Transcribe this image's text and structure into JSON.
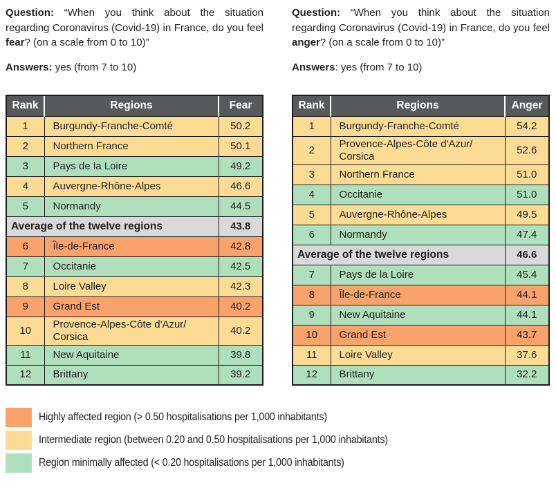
{
  "colors": {
    "orange": "#FAA26C",
    "yellow": "#FCDC95",
    "green": "#AFDFBC",
    "average_bg": "#D9D9D9",
    "header_bg": "#58595B",
    "header_text": "#FFFFFF",
    "border": "#1A1A1A",
    "text": "#212121"
  },
  "panels": [
    {
      "id": "fear",
      "question": {
        "label": "Question:",
        "text_before": " “When you think about the situation regarding Coronavirus (Covid-19) in France, do you feel ",
        "emotion": "fear",
        "text_after": "? (on a scale from 0 to 10)”"
      },
      "answers": {
        "label": "Answers:",
        "text": " yes (from 7 to 10)"
      },
      "table": {
        "columns": [
          "Rank",
          "Regions",
          "Fear"
        ],
        "rows": [
          {
            "type": "region",
            "rank": "1",
            "region": "Burgundy-Franche-Comté",
            "value": "50.2",
            "color": "yellow"
          },
          {
            "type": "region",
            "rank": "2",
            "region": "Northern France",
            "value": "50.1",
            "color": "yellow"
          },
          {
            "type": "region",
            "rank": "3",
            "region": "Pays de la Loire",
            "value": "49.2",
            "color": "green"
          },
          {
            "type": "region",
            "rank": "4",
            "region": "Auvergne-Rhône-Alpes",
            "value": "46.6",
            "color": "yellow"
          },
          {
            "type": "region",
            "rank": "5",
            "region": "Normandy",
            "value": "44.5",
            "color": "green"
          },
          {
            "type": "average",
            "label": "Average of the twelve regions",
            "value": "43.8"
          },
          {
            "type": "region",
            "rank": "6",
            "region": "Île-de-France",
            "value": "42.8",
            "color": "orange"
          },
          {
            "type": "region",
            "rank": "7",
            "region": "Occitanie",
            "value": "42.5",
            "color": "green"
          },
          {
            "type": "region",
            "rank": "8",
            "region": "Loire Valley",
            "value": "42.3",
            "color": "yellow"
          },
          {
            "type": "region",
            "rank": "9",
            "region": "Grand Est",
            "value": "40.2",
            "color": "orange"
          },
          {
            "type": "region",
            "rank": "10",
            "region": "Provence-Alpes-Côte d'Azur/ Corsica",
            "value": "40.2",
            "color": "yellow"
          },
          {
            "type": "region",
            "rank": "11",
            "region": "New Aquitaine",
            "value": "39.8",
            "color": "green"
          },
          {
            "type": "region",
            "rank": "12",
            "region": "Brittany",
            "value": "39.2",
            "color": "green"
          }
        ]
      }
    },
    {
      "id": "anger",
      "question": {
        "label": "Question:",
        "text_before": " “When you think about the situation regarding Coronavirus (Covid-19) in France, do you feel ",
        "emotion": "anger",
        "text_after": "? (on a scale from 0 to 10)”"
      },
      "answers": {
        "label": "Answers",
        "text": ": yes (from 7 to 10)"
      },
      "table": {
        "columns": [
          "Rank",
          "Regions",
          "Anger"
        ],
        "rows": [
          {
            "type": "region",
            "rank": "1",
            "region": "Burgundy-Franche-Comté",
            "value": "54.2",
            "color": "yellow"
          },
          {
            "type": "region",
            "rank": "2",
            "region": "Provence-Alpes-Côte d'Azur/ Corsica",
            "value": "52.6",
            "color": "yellow"
          },
          {
            "type": "region",
            "rank": "3",
            "region": "Northern France",
            "value": "51.0",
            "color": "yellow"
          },
          {
            "type": "region",
            "rank": "4",
            "region": "Occitanie",
            "value": "51.0",
            "color": "green"
          },
          {
            "type": "region",
            "rank": "5",
            "region": "Auvergne-Rhône-Alpes",
            "value": "49.5",
            "color": "yellow"
          },
          {
            "type": "region",
            "rank": "6",
            "region": "Normandy",
            "value": "47.4",
            "color": "green"
          },
          {
            "type": "average",
            "label": "Average of the twelve regions",
            "value": "46.6"
          },
          {
            "type": "region",
            "rank": "7",
            "region": "Pays de la Loire",
            "value": "45.4",
            "color": "green"
          },
          {
            "type": "region",
            "rank": "8",
            "region": "Île-de-France",
            "value": "44.1",
            "color": "orange"
          },
          {
            "type": "region",
            "rank": "9",
            "region": "New Aquitaine",
            "value": "44.1",
            "color": "green"
          },
          {
            "type": "region",
            "rank": "10",
            "region": "Grand Est",
            "value": "43.7",
            "color": "orange"
          },
          {
            "type": "region",
            "rank": "11",
            "region": "Loire Valley",
            "value": "37.6",
            "color": "yellow"
          },
          {
            "type": "region",
            "rank": "12",
            "region": "Brittany",
            "value": "32.2",
            "color": "green"
          }
        ]
      }
    }
  ],
  "legend": [
    {
      "color": "orange",
      "text": "Highly affected region (> 0.50 hospitalisations per 1,000 inhabitants)"
    },
    {
      "color": "yellow",
      "text": "Intermediate region (between 0.20 and 0.50 hospitalisations per 1,000 inhabitants)"
    },
    {
      "color": "green",
      "text": "Region minimally affected (< 0.20 hospitalisations per 1,000 inhabitants)"
    }
  ]
}
